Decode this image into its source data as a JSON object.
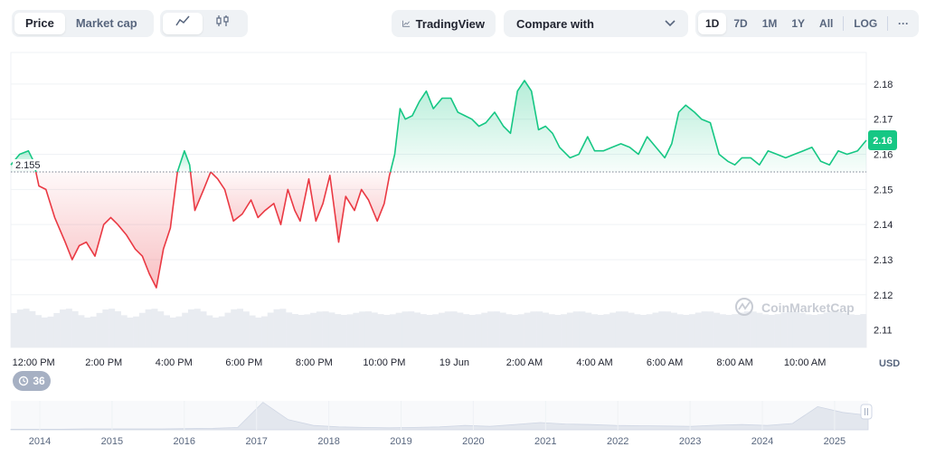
{
  "toolbar": {
    "view_tabs": [
      "Price",
      "Market cap"
    ],
    "active_view": "Price",
    "chart_style": [
      "line-chart-icon",
      "candlestick-icon"
    ],
    "tradingview_label": "TradingView",
    "compare_placeholder": "Compare with",
    "ranges": [
      "1D",
      "7D",
      "1M",
      "1Y",
      "All"
    ],
    "active_range": "1D",
    "log_label": "LOG",
    "more_label": "···"
  },
  "chart_data": {
    "type": "area",
    "reference_price": 2.155,
    "reference_label": "2.155",
    "current_price_label": "2.16",
    "currency_label": "USD",
    "watermark": "CoinMarketCap",
    "colors": {
      "up": "#16c784",
      "down": "#ea3943",
      "up_fill": "#16c784",
      "down_fill": "#ea3943"
    },
    "y_ticks": [
      2.11,
      2.12,
      2.13,
      2.14,
      2.15,
      2.16,
      2.17,
      2.18
    ],
    "y_tick_labels": [
      "2.11",
      "2.12",
      "2.13",
      "2.14",
      "2.15",
      "2.16",
      "2.17",
      "2.18"
    ],
    "ylim": [
      2.105,
      2.189
    ],
    "x_range_hours": [
      11.35,
      11.75
    ],
    "x_ticks": [
      {
        "t": 12,
        "label": "12:00 PM"
      },
      {
        "t": 14,
        "label": "2:00 PM"
      },
      {
        "t": 16,
        "label": "4:00 PM"
      },
      {
        "t": 18,
        "label": "6:00 PM"
      },
      {
        "t": 20,
        "label": "8:00 PM"
      },
      {
        "t": 22,
        "label": "10:00 PM"
      },
      {
        "t": 24,
        "label": "19 Jun"
      },
      {
        "t": 26,
        "label": "2:00 AM"
      },
      {
        "t": 28,
        "label": "4:00 AM"
      },
      {
        "t": 30,
        "label": "6:00 AM"
      },
      {
        "t": 32,
        "label": "8:00 AM"
      },
      {
        "t": 34,
        "label": "10:00 AM"
      }
    ],
    "series": [
      {
        "x": [
          11.35,
          11.6,
          11.85,
          12.0,
          12.15,
          12.35,
          12.6,
          12.9,
          13.1,
          13.3,
          13.5,
          13.75,
          14.0,
          14.2,
          14.4,
          14.65,
          14.9,
          15.1,
          15.3,
          15.5,
          15.7,
          15.9,
          16.1,
          16.3,
          16.45,
          16.6,
          16.85,
          17.05,
          17.25,
          17.45,
          17.7,
          17.95,
          18.2,
          18.4,
          18.6,
          18.85,
          19.05,
          19.25,
          19.45,
          19.6,
          19.85,
          20.05,
          20.25,
          20.45,
          20.7,
          20.9,
          21.15,
          21.35,
          21.55,
          21.8,
          22.0,
          22.15,
          22.3,
          22.45,
          22.6,
          22.8,
          23.0,
          23.2,
          23.4,
          23.65,
          23.9,
          24.1,
          24.3,
          24.5,
          24.7,
          24.9,
          25.15,
          25.4,
          25.6,
          25.8,
          26.0,
          26.2,
          26.4,
          26.6,
          26.8,
          27.0,
          27.3,
          27.55,
          27.8,
          28.0,
          28.25,
          28.5,
          28.75,
          29.0,
          29.25,
          29.5,
          29.75,
          30.0,
          30.2,
          30.4,
          30.6,
          30.85,
          31.05,
          31.3,
          31.55,
          31.8,
          32.0,
          32.2,
          32.45,
          32.7,
          32.95,
          33.2,
          33.45,
          33.7,
          33.95,
          34.2,
          34.45,
          34.7,
          34.95,
          35.2,
          35.5,
          35.75
        ],
        "values": [
          2.157,
          2.16,
          2.161,
          2.158,
          2.151,
          2.15,
          2.142,
          2.135,
          2.13,
          2.134,
          2.135,
          2.131,
          2.14,
          2.142,
          2.14,
          2.137,
          2.133,
          2.131,
          2.126,
          2.122,
          2.133,
          2.139,
          2.155,
          2.161,
          2.157,
          2.144,
          2.15,
          2.155,
          2.153,
          2.15,
          2.141,
          2.143,
          2.147,
          2.142,
          2.144,
          2.146,
          2.14,
          2.15,
          2.144,
          2.141,
          2.153,
          2.141,
          2.146,
          2.154,
          2.135,
          2.148,
          2.144,
          2.15,
          2.147,
          2.141,
          2.146,
          2.154,
          2.16,
          2.173,
          2.17,
          2.171,
          2.175,
          2.178,
          2.173,
          2.176,
          2.176,
          2.172,
          2.171,
          2.17,
          2.168,
          2.169,
          2.172,
          2.168,
          2.166,
          2.178,
          2.181,
          2.178,
          2.167,
          2.168,
          2.166,
          2.162,
          2.159,
          2.16,
          2.165,
          2.161,
          2.161,
          2.162,
          2.163,
          2.162,
          2.16,
          2.165,
          2.162,
          2.159,
          2.163,
          2.172,
          2.174,
          2.172,
          2.17,
          2.169,
          2.16,
          2.158,
          2.157,
          2.159,
          2.159,
          2.157,
          2.161,
          2.16,
          2.159,
          2.16,
          2.161,
          2.162,
          2.158,
          2.157,
          2.161,
          2.16,
          2.161,
          2.164
        ]
      }
    ],
    "volume_label": "",
    "history": {
      "alert_count": "36",
      "year_labels": [
        "2014",
        "2015",
        "2016",
        "2017",
        "2018",
        "2019",
        "2020",
        "2021",
        "2022",
        "2023",
        "2024",
        "2025"
      ],
      "relative_values": [
        0.02,
        0.02,
        0.02,
        0.03,
        0.03,
        0.03,
        0.03,
        0.04,
        0.05,
        0.08,
        0.95,
        0.35,
        0.15,
        0.1,
        0.08,
        0.07,
        0.08,
        0.1,
        0.15,
        0.12,
        0.18,
        0.25,
        0.2,
        0.18,
        0.15,
        0.14,
        0.13,
        0.12,
        0.16,
        0.18,
        0.15,
        0.22,
        0.8,
        0.6,
        0.5
      ]
    }
  }
}
